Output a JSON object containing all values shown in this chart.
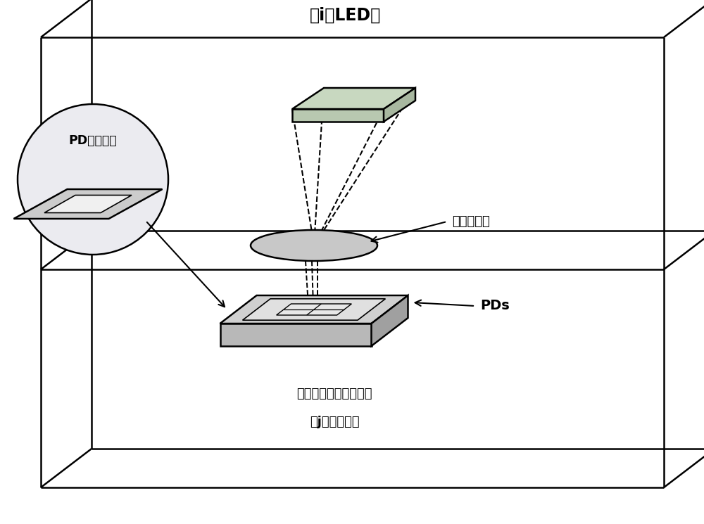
{
  "bg_color": "#ffffff",
  "line_color": "#000000",
  "title_text_parts": [
    "第i个LED灯",
    "第",
    "i",
    "个LED灯"
  ],
  "label_lens": "成像式透镜",
  "label_pds": "PDs",
  "label_circle_top": "PD上的成像",
  "label_bottom1": "在房间中可自由移动的",
  "label_bottom2": "第j个用户终端",
  "green_light": "#c8d8c0",
  "green_mid": "#b8c8b0",
  "green_dark": "#a8b8a0",
  "gray_light": "#d0d0d0",
  "gray_mid": "#b8b8b8",
  "gray_dark": "#a0a0a0",
  "gray_inner": "#e0e0e0",
  "circle_bg": "#ebebf0",
  "lens_color": "#c8c8c8"
}
